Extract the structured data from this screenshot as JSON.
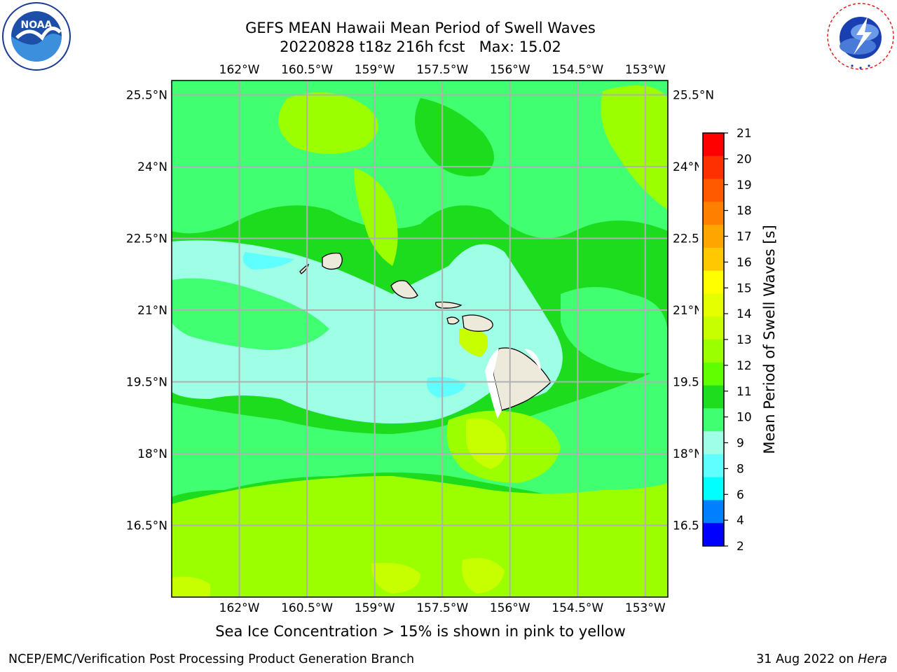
{
  "header": {
    "title": "GEFS MEAN Hawaii Mean Period of Swell Waves",
    "subtitle": "20220828 t18z 216h fcst   Max: 15.02"
  },
  "logos": {
    "left": "noaa-logo",
    "right": "national-weather-service-logo"
  },
  "map": {
    "lon_range": [
      -163.5,
      -152.5
    ],
    "lat_range": [
      15.0,
      25.8
    ],
    "lon_ticks": [
      "162°W",
      "160.5°W",
      "159°W",
      "157.5°W",
      "156°W",
      "154.5°W",
      "153°W"
    ],
    "lat_ticks": [
      "25.5°N",
      "24°N",
      "22.5°N",
      "21°N",
      "19.5°N",
      "18°N",
      "16.5°N"
    ],
    "lat_ticks_right": [
      "25.5°N",
      "24°N",
      "22.5",
      "21°N",
      "19.5",
      "18°N",
      "16.5"
    ],
    "gridlines": true,
    "grid_color": "#b0b0b0",
    "land_color": "#eeeadb"
  },
  "colorbar": {
    "label": "Mean Period of Swell Waves [s]",
    "ticks": [
      "21",
      "20",
      "19",
      "18",
      "17",
      "16",
      "15",
      "14",
      "13",
      "12",
      "11",
      "10",
      "9",
      "8",
      "6",
      "4",
      "2"
    ],
    "colors": [
      "#ff0000",
      "#ff3000",
      "#ff5a00",
      "#ff8000",
      "#ffa500",
      "#ffc800",
      "#ffff00",
      "#e6ff00",
      "#c8ff00",
      "#9bff00",
      "#5fff00",
      "#1edc1e",
      "#40ff70",
      "#9effe6",
      "#60ffff",
      "#00ffff",
      "#0080ff",
      "#0000ff"
    ]
  },
  "note": "Sea Ice Concentration > 15% is shown in pink to yellow",
  "footer": {
    "left": "NCEP/EMC/Verification Post Processing Product Generation Branch",
    "date": "31 Aug 2022 on ",
    "machine": "Hera"
  }
}
